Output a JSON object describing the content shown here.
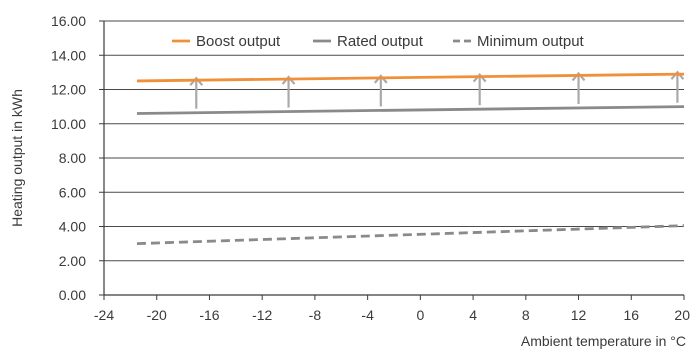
{
  "chart_data": {
    "type": "line",
    "xlabel": "Ambient temperature in °C",
    "ylabel": "Heating output in kWh",
    "xlim": [
      -24,
      20
    ],
    "ylim": [
      0,
      16
    ],
    "x_ticks": [
      -24,
      -20,
      -16,
      -12,
      -8,
      -4,
      0,
      4,
      8,
      12,
      16,
      20
    ],
    "x_tick_labels": [
      "-24",
      "-20",
      "-16",
      "-12",
      "-8",
      "-4",
      "0",
      "4",
      "8",
      "12",
      "16",
      "20"
    ],
    "y_ticks": [
      0,
      2,
      4,
      6,
      8,
      10,
      12,
      14,
      16
    ],
    "y_tick_labels": [
      "0.00",
      "2.00",
      "4.00",
      "6.00",
      "8.00",
      "10.00",
      "12.00",
      "14.00",
      "16.00"
    ],
    "grid": {
      "horizontal": true,
      "vertical": false
    },
    "legend": {
      "position": "top",
      "orientation": "horizontal"
    },
    "series": [
      {
        "name": "Boost output",
        "color": "#f0913a",
        "style": "solid",
        "x": [
          -21.5,
          20
        ],
        "y": [
          12.5,
          12.9
        ]
      },
      {
        "name": "Rated output",
        "color": "#8a8a8a",
        "style": "solid",
        "x": [
          -21.5,
          20
        ],
        "y": [
          10.6,
          11.0
        ]
      },
      {
        "name": "Minimum output",
        "color": "#8a8a8a",
        "style": "dashed",
        "x": [
          -21.5,
          20
        ],
        "y": [
          3.0,
          4.05
        ]
      }
    ],
    "annotations": {
      "type": "arrows",
      "description_icon": "up-arrow-icon",
      "color": "#a9a9a9",
      "x": [
        -17,
        -10,
        -3,
        4.5,
        12,
        19.5
      ],
      "from_series": "Rated output",
      "to_series": "Boost output"
    }
  }
}
